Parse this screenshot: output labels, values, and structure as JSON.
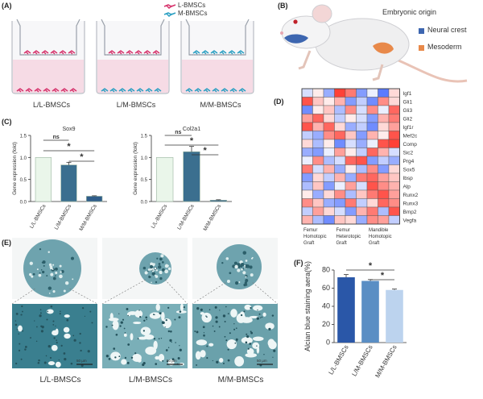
{
  "panels": {
    "a": "(A)",
    "b": "(B)",
    "c": "(C)",
    "d": "(D)",
    "e": "(E)",
    "f": "(F)"
  },
  "colors": {
    "l_cell": "#d6336c",
    "m_cell": "#2a9fc2",
    "medium": "#f6d6e2",
    "bar_dark": "#2f5d8a",
    "bar_mid": "#5a8ec4",
    "bar_light": "#bcd3ee",
    "bar_pale": "#eaf6ea",
    "stain": "#3a7f8f",
    "neural_crest": "#3d66b0",
    "mesoderm": "#e8894a"
  },
  "panel_a": {
    "legend": {
      "l": "L-BMSCs",
      "m": "M-BMSCs"
    },
    "wells": [
      "L/L-BMSCs",
      "L/M-BMSCs",
      "M/M-BMSCs"
    ]
  },
  "panel_b": {
    "title": "Embryonic origin",
    "legend": [
      {
        "label": "Neural crest",
        "color": "#3d66b0"
      },
      {
        "label": "Mesoderm",
        "color": "#e8894a"
      }
    ]
  },
  "chart_data": [
    {
      "type": "bar",
      "title": "Sox9",
      "ylabel": "Gene expression (fold)",
      "categories": [
        "L/L-BMSCs",
        "L/M-BMSCs",
        "M/M-BMSCs"
      ],
      "values": [
        1.0,
        0.83,
        0.12
      ],
      "errors": [
        0,
        0.06,
        0.01
      ],
      "ylim": [
        0,
        1.5
      ],
      "yticks": [
        "0.0",
        "0.5",
        "1.0",
        "1.5"
      ],
      "colors": [
        "#eaf6ea",
        "#3b6f8f",
        "#2f5d8a"
      ],
      "significance": [
        {
          "from": 0,
          "to": 1,
          "label": "ns"
        },
        {
          "from": 0,
          "to": 2,
          "label": "*"
        },
        {
          "from": 1,
          "to": 2,
          "label": "*"
        }
      ]
    },
    {
      "type": "bar",
      "title": "Col2a1",
      "ylabel": "Gene expression (fold)",
      "categories": [
        "L/L-BMSCs",
        "L/M-BMSCs",
        "M/M-BMSCs"
      ],
      "values": [
        1.0,
        1.13,
        0.03
      ],
      "errors": [
        0,
        0.12,
        0.01
      ],
      "ylim": [
        0,
        1.5
      ],
      "yticks": [
        "0.0",
        "0.5",
        "1.0",
        "1.5"
      ],
      "colors": [
        "#eaf6ea",
        "#3b6f8f",
        "#2f5d8a"
      ],
      "significance": [
        {
          "from": 0,
          "to": 1,
          "label": "ns"
        },
        {
          "from": 0,
          "to": 2,
          "label": "*"
        },
        {
          "from": 1,
          "to": 2,
          "label": "*"
        }
      ]
    },
    {
      "type": "heatmap",
      "rows": [
        "Igf1",
        "Gli1",
        "Gli3",
        "Gli2",
        "Igf1r",
        "Mef2c",
        "Comp",
        "Sic2",
        "Prg4",
        "Sox5",
        "Ibsp",
        "Alp",
        "Runx2",
        "Runx3",
        "Bmp2",
        "Vegfa"
      ],
      "column_groups": [
        "Femur Homotopic Graft",
        "Femur Heterotopic Graft",
        "Mandible Homotopic Graft"
      ],
      "values": [
        [
          -0.2,
          0.1,
          -0.5,
          1.0,
          0.7,
          -0.6,
          -0.1,
          -0.8,
          0.2
        ],
        [
          0.9,
          0.3,
          0.1,
          0.4,
          -0.6,
          -0.3,
          -0.7,
          0.6,
          0.2
        ],
        [
          -0.7,
          0.1,
          0.3,
          -0.4,
          0.6,
          -0.2,
          0.6,
          -0.1,
          0.8
        ],
        [
          0.5,
          0.8,
          0.2,
          -0.3,
          0.1,
          -0.2,
          -0.6,
          0.4,
          0.7
        ],
        [
          0.9,
          0.4,
          0.8,
          0.2,
          -0.5,
          -0.3,
          -0.7,
          0.2,
          0.5
        ],
        [
          -0.3,
          -0.5,
          0.6,
          0.8,
          0.3,
          -0.6,
          0.4,
          0.1,
          0.9
        ],
        [
          0.2,
          -0.4,
          0.1,
          -0.7,
          -0.2,
          -0.5,
          -0.1,
          0.9,
          1.0
        ],
        [
          -0.5,
          -0.6,
          -0.1,
          0.5,
          0.1,
          -0.3,
          0.8,
          0.4,
          -0.2
        ],
        [
          -0.1,
          0.6,
          -0.4,
          -0.2,
          0.8,
          0.9,
          -0.6,
          -0.3,
          -0.5
        ],
        [
          0.7,
          -0.2,
          0.4,
          -0.5,
          0.1,
          -0.4,
          0.6,
          -0.6,
          0.2
        ],
        [
          -0.6,
          0.2,
          -0.3,
          0.4,
          -0.5,
          0.7,
          0.8,
          0.5,
          0.3
        ],
        [
          -0.4,
          0.3,
          -0.6,
          -0.1,
          0.5,
          -0.2,
          0.9,
          0.6,
          0.4
        ],
        [
          0.1,
          -0.5,
          0.2,
          0.6,
          -0.4,
          0.3,
          0.7,
          0.9,
          0.5
        ],
        [
          0.6,
          0.3,
          -0.5,
          -0.6,
          0.7,
          -0.3,
          0.2,
          0.8,
          0.6
        ],
        [
          -0.3,
          0.5,
          0.2,
          -0.2,
          -0.6,
          0.4,
          0.7,
          -0.4,
          0.9
        ],
        [
          0.4,
          -0.4,
          -0.7,
          0.3,
          0.2,
          -0.5,
          0.6,
          0.5,
          -0.3
        ]
      ]
    },
    {
      "type": "bar",
      "title": "",
      "ylabel": "Alcian blue staining aera(%)",
      "categories": [
        "L/L-BMSCs",
        "L/M-BMSCs",
        "M/M-BMSCs"
      ],
      "values": [
        72,
        68,
        58
      ],
      "errors": [
        3,
        1.5,
        1
      ],
      "ylim": [
        0,
        80
      ],
      "yticks": [
        "0",
        "20",
        "40",
        "60",
        "80"
      ],
      "colors": [
        "#2a57a8",
        "#5a8ec4",
        "#bcd3ee"
      ],
      "significance": [
        {
          "from": 0,
          "to": 2,
          "label": "*"
        },
        {
          "from": 1,
          "to": 2,
          "label": "*"
        }
      ]
    }
  ],
  "panel_e": {
    "labels": [
      "L/L-BMSCs",
      "L/M-BMSCs",
      "M/M-BMSCs"
    ],
    "scale_bars": [
      "",
      "",
      "",
      "50 µm",
      "50 µm",
      "50 µm"
    ]
  }
}
